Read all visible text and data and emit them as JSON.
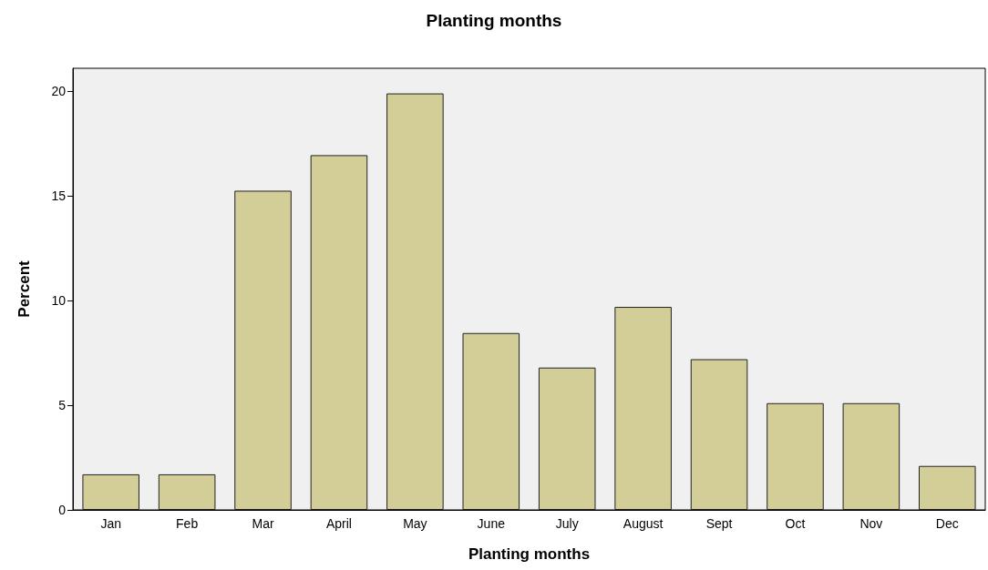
{
  "chart_data": {
    "type": "bar",
    "title": "Planting months",
    "xlabel": "Planting months",
    "ylabel": "Percent",
    "categories": [
      "Jan",
      "Feb",
      "Mar",
      "April",
      "May",
      "June",
      "July",
      "August",
      "Sept",
      "Oct",
      "Nov",
      "Dec"
    ],
    "values": [
      1.7,
      1.7,
      15.25,
      16.95,
      19.9,
      8.45,
      6.8,
      9.7,
      7.2,
      5.1,
      5.1,
      2.1
    ],
    "color": "#d3ce97",
    "ylim": [
      0,
      21.1
    ],
    "yticks": [
      0,
      5,
      10,
      15,
      20
    ],
    "grid": false
  }
}
